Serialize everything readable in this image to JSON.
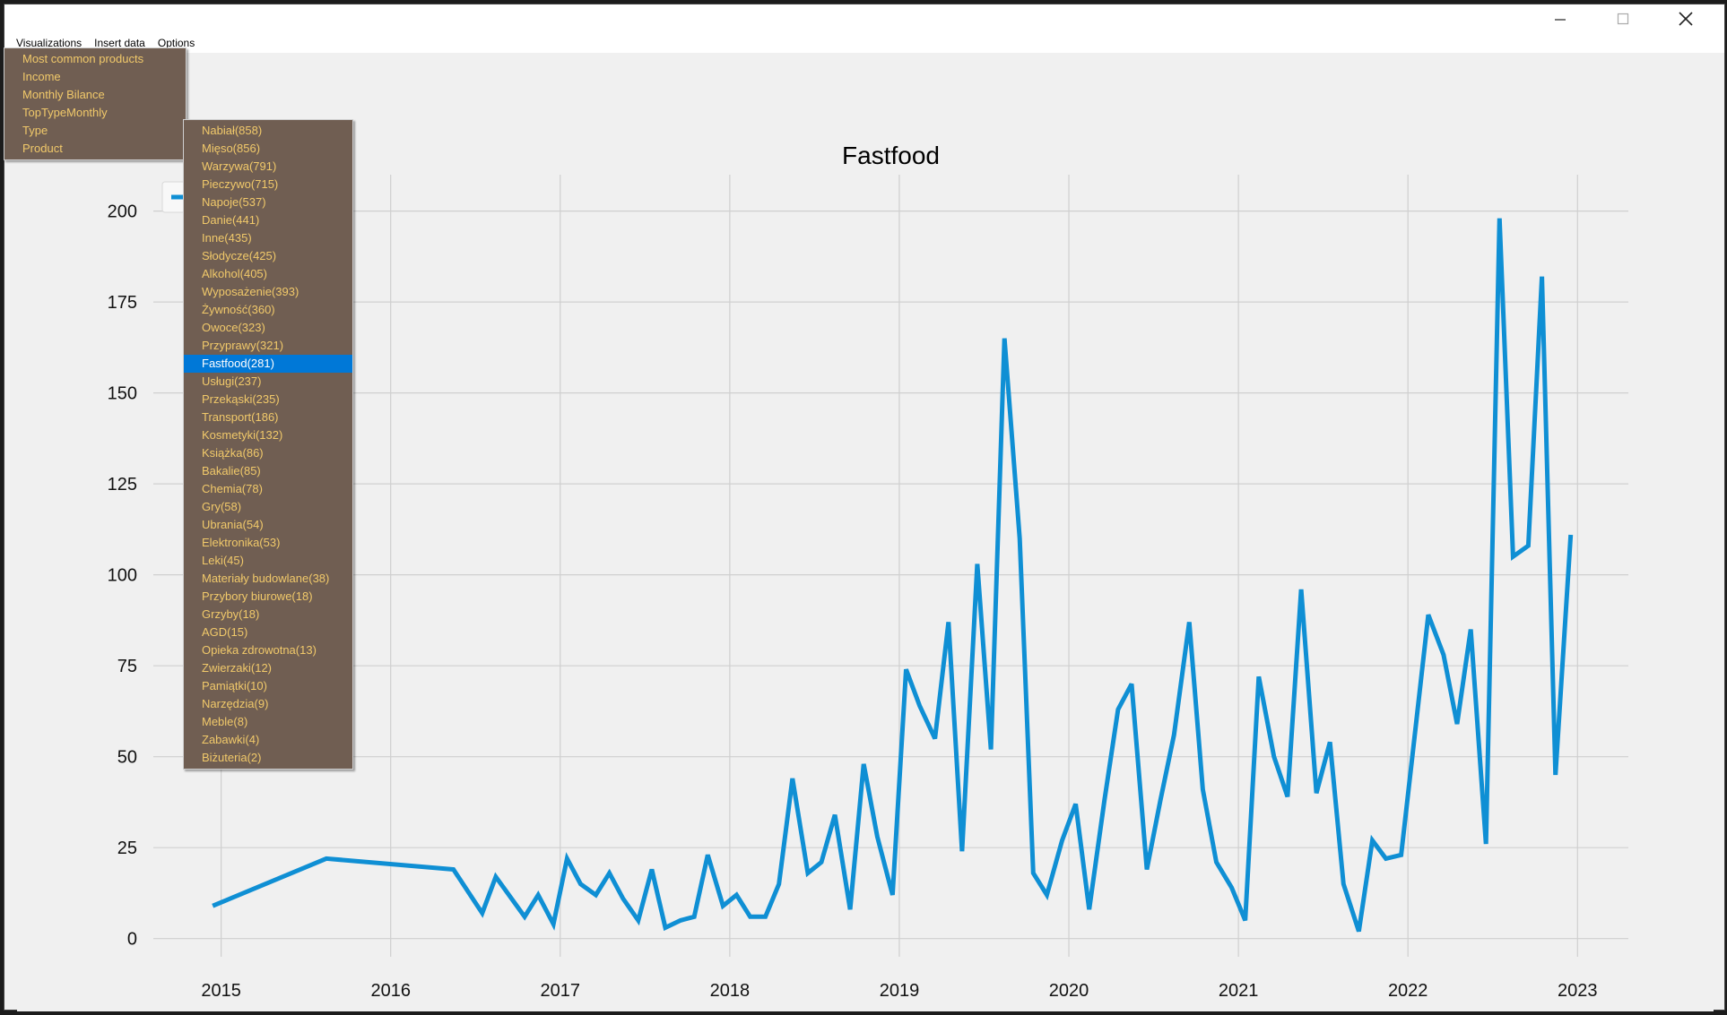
{
  "menubar": {
    "items": [
      "Visualizations",
      "Insert data",
      "Options"
    ]
  },
  "visualizations_menu": {
    "items": [
      "Most common products",
      "Income",
      "Monthly Bilance",
      "TopTypeMonthly",
      "Type",
      "Product"
    ]
  },
  "type_menu": {
    "selected_index": 13,
    "items": [
      "Nabiał(858)",
      "Mięso(856)",
      "Warzywa(791)",
      "Pieczywo(715)",
      "Napoje(537)",
      "Danie(441)",
      "Inne(435)",
      "Słodycze(425)",
      "Alkohol(405)",
      "Wyposażenie(393)",
      "Żywność(360)",
      "Owoce(323)",
      "Przyprawy(321)",
      "Fastfood(281)",
      "Usługi(237)",
      "Przekąski(235)",
      "Transport(186)",
      "Kosmetyki(132)",
      "Książka(86)",
      "Bakalie(85)",
      "Chemia(78)",
      "Gry(58)",
      "Ubrania(54)",
      "Elektronika(53)",
      "Leki(45)",
      "Materiały budowlane(38)",
      "Przybory biurowe(18)",
      "Grzyby(18)",
      "AGD(15)",
      "Opieka zdrowotna(13)",
      "Zwierzaki(12)",
      "Pamiątki(10)",
      "Narzędzia(9)",
      "Meble(8)",
      "Zabawki(4)",
      "Biżuteria(2)"
    ]
  },
  "colors": {
    "line": "#0f8fd4",
    "menu_bg": "#705e52",
    "menu_text": "#f1c96a",
    "selected": "#0078d7"
  },
  "chart_data": {
    "type": "line",
    "title": "Fastfood",
    "xlabel": "",
    "ylabel": "",
    "x_ticks": [
      "2015",
      "2016",
      "2017",
      "2018",
      "2019",
      "2020",
      "2021",
      "2022",
      "2023"
    ],
    "y_ticks": [
      0,
      25,
      50,
      75,
      100,
      125,
      150,
      175,
      200
    ],
    "xlim": [
      2014.6,
      2023.3
    ],
    "ylim": [
      -5,
      210
    ],
    "grid": true,
    "legend": "top-left (partially covered by menu)",
    "series": [
      {
        "name": "",
        "x": [
          2014.95,
          2015.62,
          2016.37,
          2016.54,
          2016.62,
          2016.79,
          2016.87,
          2016.96,
          2017.04,
          2017.12,
          2017.21,
          2017.29,
          2017.37,
          2017.46,
          2017.54,
          2017.62,
          2017.71,
          2017.79,
          2017.87,
          2017.96,
          2018.04,
          2018.12,
          2018.21,
          2018.29,
          2018.37,
          2018.46,
          2018.54,
          2018.62,
          2018.71,
          2018.79,
          2018.87,
          2018.96,
          2019.04,
          2019.12,
          2019.21,
          2019.29,
          2019.37,
          2019.46,
          2019.54,
          2019.62,
          2019.71,
          2019.79,
          2019.87,
          2019.96,
          2020.04,
          2020.12,
          2020.21,
          2020.29,
          2020.37,
          2020.46,
          2020.54,
          2020.62,
          2020.71,
          2020.79,
          2020.87,
          2020.96,
          2021.04,
          2021.12,
          2021.21,
          2021.29,
          2021.37,
          2021.46,
          2021.54,
          2021.62,
          2021.71,
          2021.79,
          2021.87,
          2021.96,
          2022.04,
          2022.12,
          2022.21,
          2022.29,
          2022.37,
          2022.46,
          2022.54,
          2022.62,
          2022.71,
          2022.79,
          2022.87,
          2022.96
        ],
        "values": [
          9,
          22,
          19,
          7,
          17,
          6,
          12,
          4,
          22,
          15,
          12,
          18,
          11,
          5,
          19,
          3,
          5,
          6,
          23,
          9,
          12,
          6,
          6,
          15,
          44,
          18,
          21,
          34,
          8,
          48,
          28,
          12,
          74,
          64,
          55,
          87,
          24,
          103,
          52,
          165,
          110,
          18,
          12,
          27,
          37,
          8,
          38,
          63,
          70,
          19,
          38,
          56,
          87,
          41,
          21,
          14,
          5,
          72,
          50,
          39,
          96,
          40,
          54,
          15,
          2,
          27,
          22,
          23,
          56,
          89,
          78,
          59,
          85,
          26,
          198,
          105,
          108,
          182,
          45,
          111
        ]
      }
    ]
  }
}
